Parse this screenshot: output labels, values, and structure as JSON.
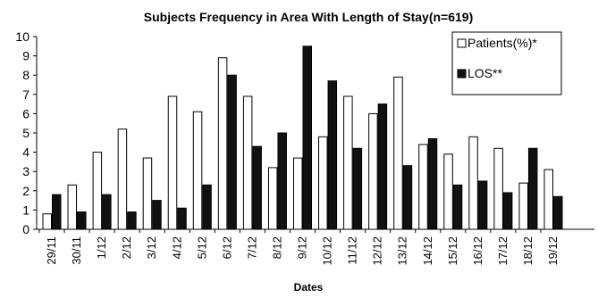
{
  "chart_data": {
    "type": "bar",
    "title": "Subjects Frequency in Area With Length of Stay(n=619)",
    "xlabel": "Dates",
    "ylabel": "",
    "ylim": [
      0,
      10
    ],
    "yticks": [
      0,
      1,
      2,
      3,
      4,
      5,
      6,
      7,
      8,
      9,
      10
    ],
    "grid": false,
    "legend_position": "top-right",
    "categories": [
      "29/11",
      "30/11",
      "1/12",
      "2/12",
      "3/12",
      "4/12",
      "5/12",
      "6/12",
      "7/12",
      "8/12",
      "9/12",
      "10/12",
      "11/12",
      "12/12",
      "13/12",
      "14/12",
      "15/12",
      "16/12",
      "17/12",
      "18/12",
      "19/12"
    ],
    "series": [
      {
        "name": "Patients(%)*",
        "color": "#ffffff",
        "values": [
          0.8,
          2.3,
          4.0,
          5.2,
          3.7,
          6.9,
          6.1,
          8.9,
          6.9,
          3.2,
          3.7,
          4.8,
          6.9,
          6.0,
          7.9,
          4.4,
          3.9,
          4.8,
          4.2,
          2.4,
          3.1
        ]
      },
      {
        "name": "LOS**",
        "color": "#111111",
        "values": [
          1.8,
          0.9,
          1.8,
          0.9,
          1.5,
          1.1,
          2.3,
          8.0,
          4.3,
          5.0,
          9.5,
          7.7,
          4.2,
          6.5,
          3.3,
          4.7,
          2.3,
          2.5,
          1.9,
          4.2,
          1.7
        ]
      }
    ]
  }
}
